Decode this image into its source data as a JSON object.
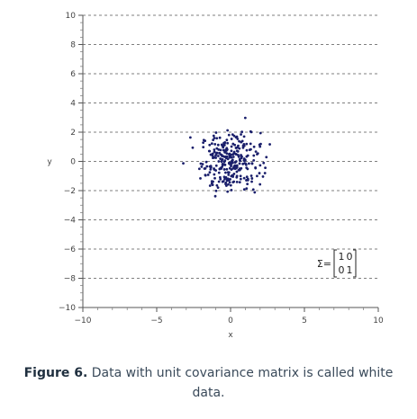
{
  "chart_data": {
    "type": "scatter",
    "title": "",
    "xlabel": "x",
    "ylabel": "y",
    "xlim": [
      -10,
      10
    ],
    "ylim": [
      -10,
      10
    ],
    "x_ticks": [
      -10,
      -5,
      0,
      5,
      10
    ],
    "y_ticks": [
      -10,
      -8,
      -6,
      -4,
      -2,
      0,
      2,
      4,
      6,
      8,
      10
    ],
    "x_tick_labels": [
      "−10",
      "−5",
      "0",
      "5",
      "10"
    ],
    "y_tick_labels": [
      "−10",
      "−8",
      "−6",
      "−4",
      "−2",
      "0",
      "2",
      "4",
      "6",
      "8",
      "10"
    ],
    "grid": "horizontal dashed",
    "point_color": "#1a1f6b",
    "annotation": {
      "prefix": "Σ=",
      "matrix": [
        [
          "1",
          "0"
        ],
        [
          "0",
          "1"
        ]
      ]
    },
    "series": [
      {
        "distribution": "bivariate normal, mean [0, 0], unit covariance",
        "n_points": 300
      }
    ]
  },
  "caption": {
    "label": "Figure 6.",
    "text": "Data with unit covariance matrix is called white data."
  }
}
